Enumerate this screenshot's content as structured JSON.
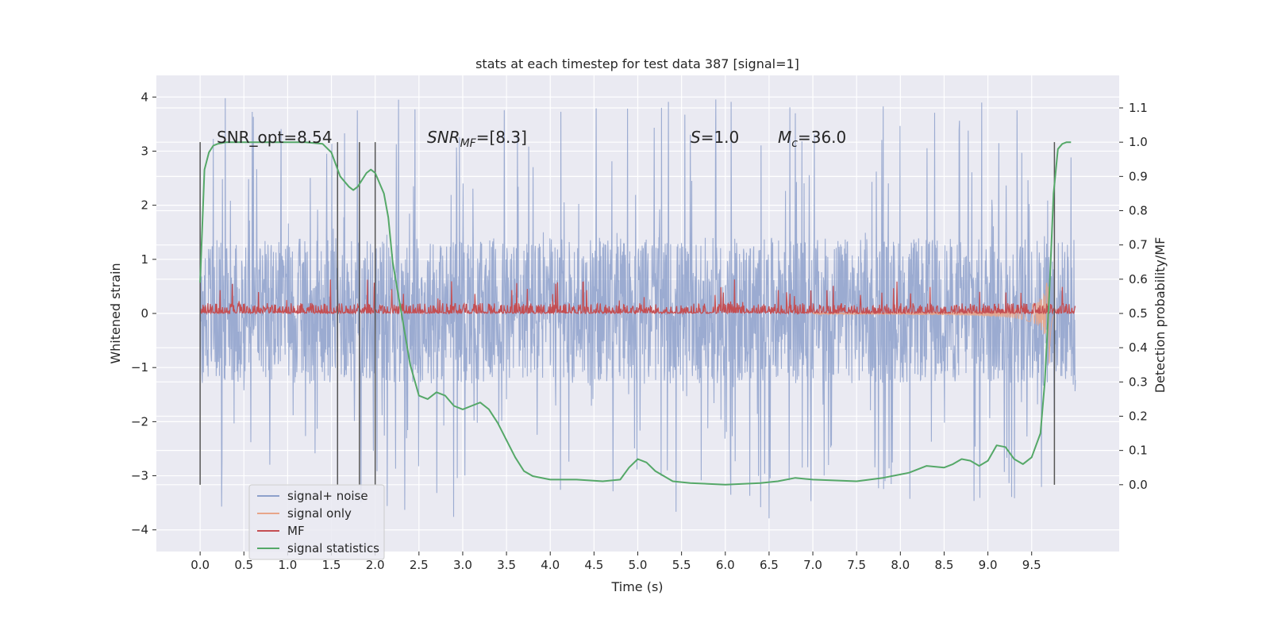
{
  "chart_data": {
    "type": "line",
    "title": "stats at each timestep for test data 387 [signal=1]",
    "xlabel": "Time (s)",
    "ylabel_left": "Whitened strain",
    "ylabel_right": "Detection probability/MF",
    "xlim": [
      -0.5,
      10.5
    ],
    "ylim_left": [
      -4.4,
      4.4
    ],
    "ylim_right": [
      -0.195,
      1.195
    ],
    "xticks": [
      "0.0",
      "0.5",
      "1.0",
      "1.5",
      "2.0",
      "2.5",
      "3.0",
      "3.5",
      "4.0",
      "4.5",
      "5.0",
      "5.5",
      "6.0",
      "6.5",
      "7.0",
      "7.5",
      "8.0",
      "8.5",
      "9.0",
      "9.5"
    ],
    "yticks_left": [
      "−4",
      "−3",
      "−2",
      "−1",
      "0",
      "1",
      "2",
      "3",
      "4"
    ],
    "yticks_right": [
      "0.0",
      "0.1",
      "0.2",
      "0.3",
      "0.4",
      "0.5",
      "0.6",
      "0.7",
      "0.8",
      "0.9",
      "1.0",
      "1.1"
    ],
    "grid": true,
    "legend_position": "lower-left",
    "annotations": {
      "snr_opt": "SNR_opt=8.54",
      "snr_mf_prefix": "SNR",
      "snr_mf_sub": "MF",
      "snr_mf_rest": "=[8.3]",
      "s_italic": "S",
      "s_rest": "=1.0",
      "mc_italic": "M",
      "mc_sub": "c",
      "mc_rest": "=36.0"
    },
    "vertical_lines_x": [
      0.0,
      1.57,
      1.82,
      2.0,
      9.76
    ],
    "series": [
      {
        "name": "signal+ noise",
        "color": "#8da0cb",
        "axis": "left",
        "x_range": [
          0.0,
          10.0
        ],
        "typical_band": [
          -1.3,
          1.4
        ],
        "peak_range": [
          -3.8,
          4.0
        ]
      },
      {
        "name": "signal only",
        "color": "#e8a58a",
        "axis": "left",
        "chirp_time": 9.7,
        "peak_amplitude": 1.0
      },
      {
        "name": "MF",
        "color": "#c44e52",
        "axis": "right",
        "baseline": 0.5,
        "typical_top": 0.53,
        "peak_top": 0.6
      },
      {
        "name": "signal statistics",
        "color": "#55a868",
        "axis": "right",
        "x": [
          0.0,
          0.05,
          0.1,
          0.15,
          0.2,
          0.3,
          0.5,
          0.8,
          1.0,
          1.2,
          1.4,
          1.5,
          1.6,
          1.7,
          1.75,
          1.8,
          1.9,
          1.95,
          2.0,
          2.1,
          2.15,
          2.2,
          2.3,
          2.4,
          2.5,
          2.6,
          2.7,
          2.8,
          2.9,
          3.0,
          3.1,
          3.2,
          3.3,
          3.4,
          3.5,
          3.6,
          3.7,
          3.8,
          4.0,
          4.3,
          4.6,
          4.8,
          4.9,
          5.0,
          5.1,
          5.2,
          5.4,
          5.6,
          6.0,
          6.4,
          6.6,
          6.8,
          7.0,
          7.5,
          7.8,
          8.0,
          8.1,
          8.3,
          8.5,
          8.6,
          8.7,
          8.8,
          8.9,
          9.0,
          9.1,
          9.2,
          9.3,
          9.4,
          9.5,
          9.6,
          9.65,
          9.7,
          9.75,
          9.8,
          9.85,
          9.9,
          9.95
        ],
        "y": [
          0.59,
          0.92,
          0.97,
          0.99,
          0.995,
          1.0,
          1.0,
          1.0,
          1.0,
          1.0,
          0.995,
          0.97,
          0.9,
          0.87,
          0.86,
          0.87,
          0.91,
          0.92,
          0.91,
          0.85,
          0.78,
          0.65,
          0.5,
          0.35,
          0.26,
          0.25,
          0.27,
          0.26,
          0.23,
          0.22,
          0.23,
          0.24,
          0.22,
          0.18,
          0.13,
          0.08,
          0.04,
          0.025,
          0.015,
          0.015,
          0.01,
          0.015,
          0.05,
          0.075,
          0.065,
          0.04,
          0.01,
          0.005,
          0.0,
          0.005,
          0.01,
          0.02,
          0.015,
          0.01,
          0.02,
          0.03,
          0.035,
          0.055,
          0.05,
          0.06,
          0.075,
          0.07,
          0.055,
          0.07,
          0.115,
          0.11,
          0.075,
          0.06,
          0.08,
          0.15,
          0.3,
          0.55,
          0.85,
          0.98,
          0.995,
          1.0,
          1.0
        ]
      }
    ]
  }
}
